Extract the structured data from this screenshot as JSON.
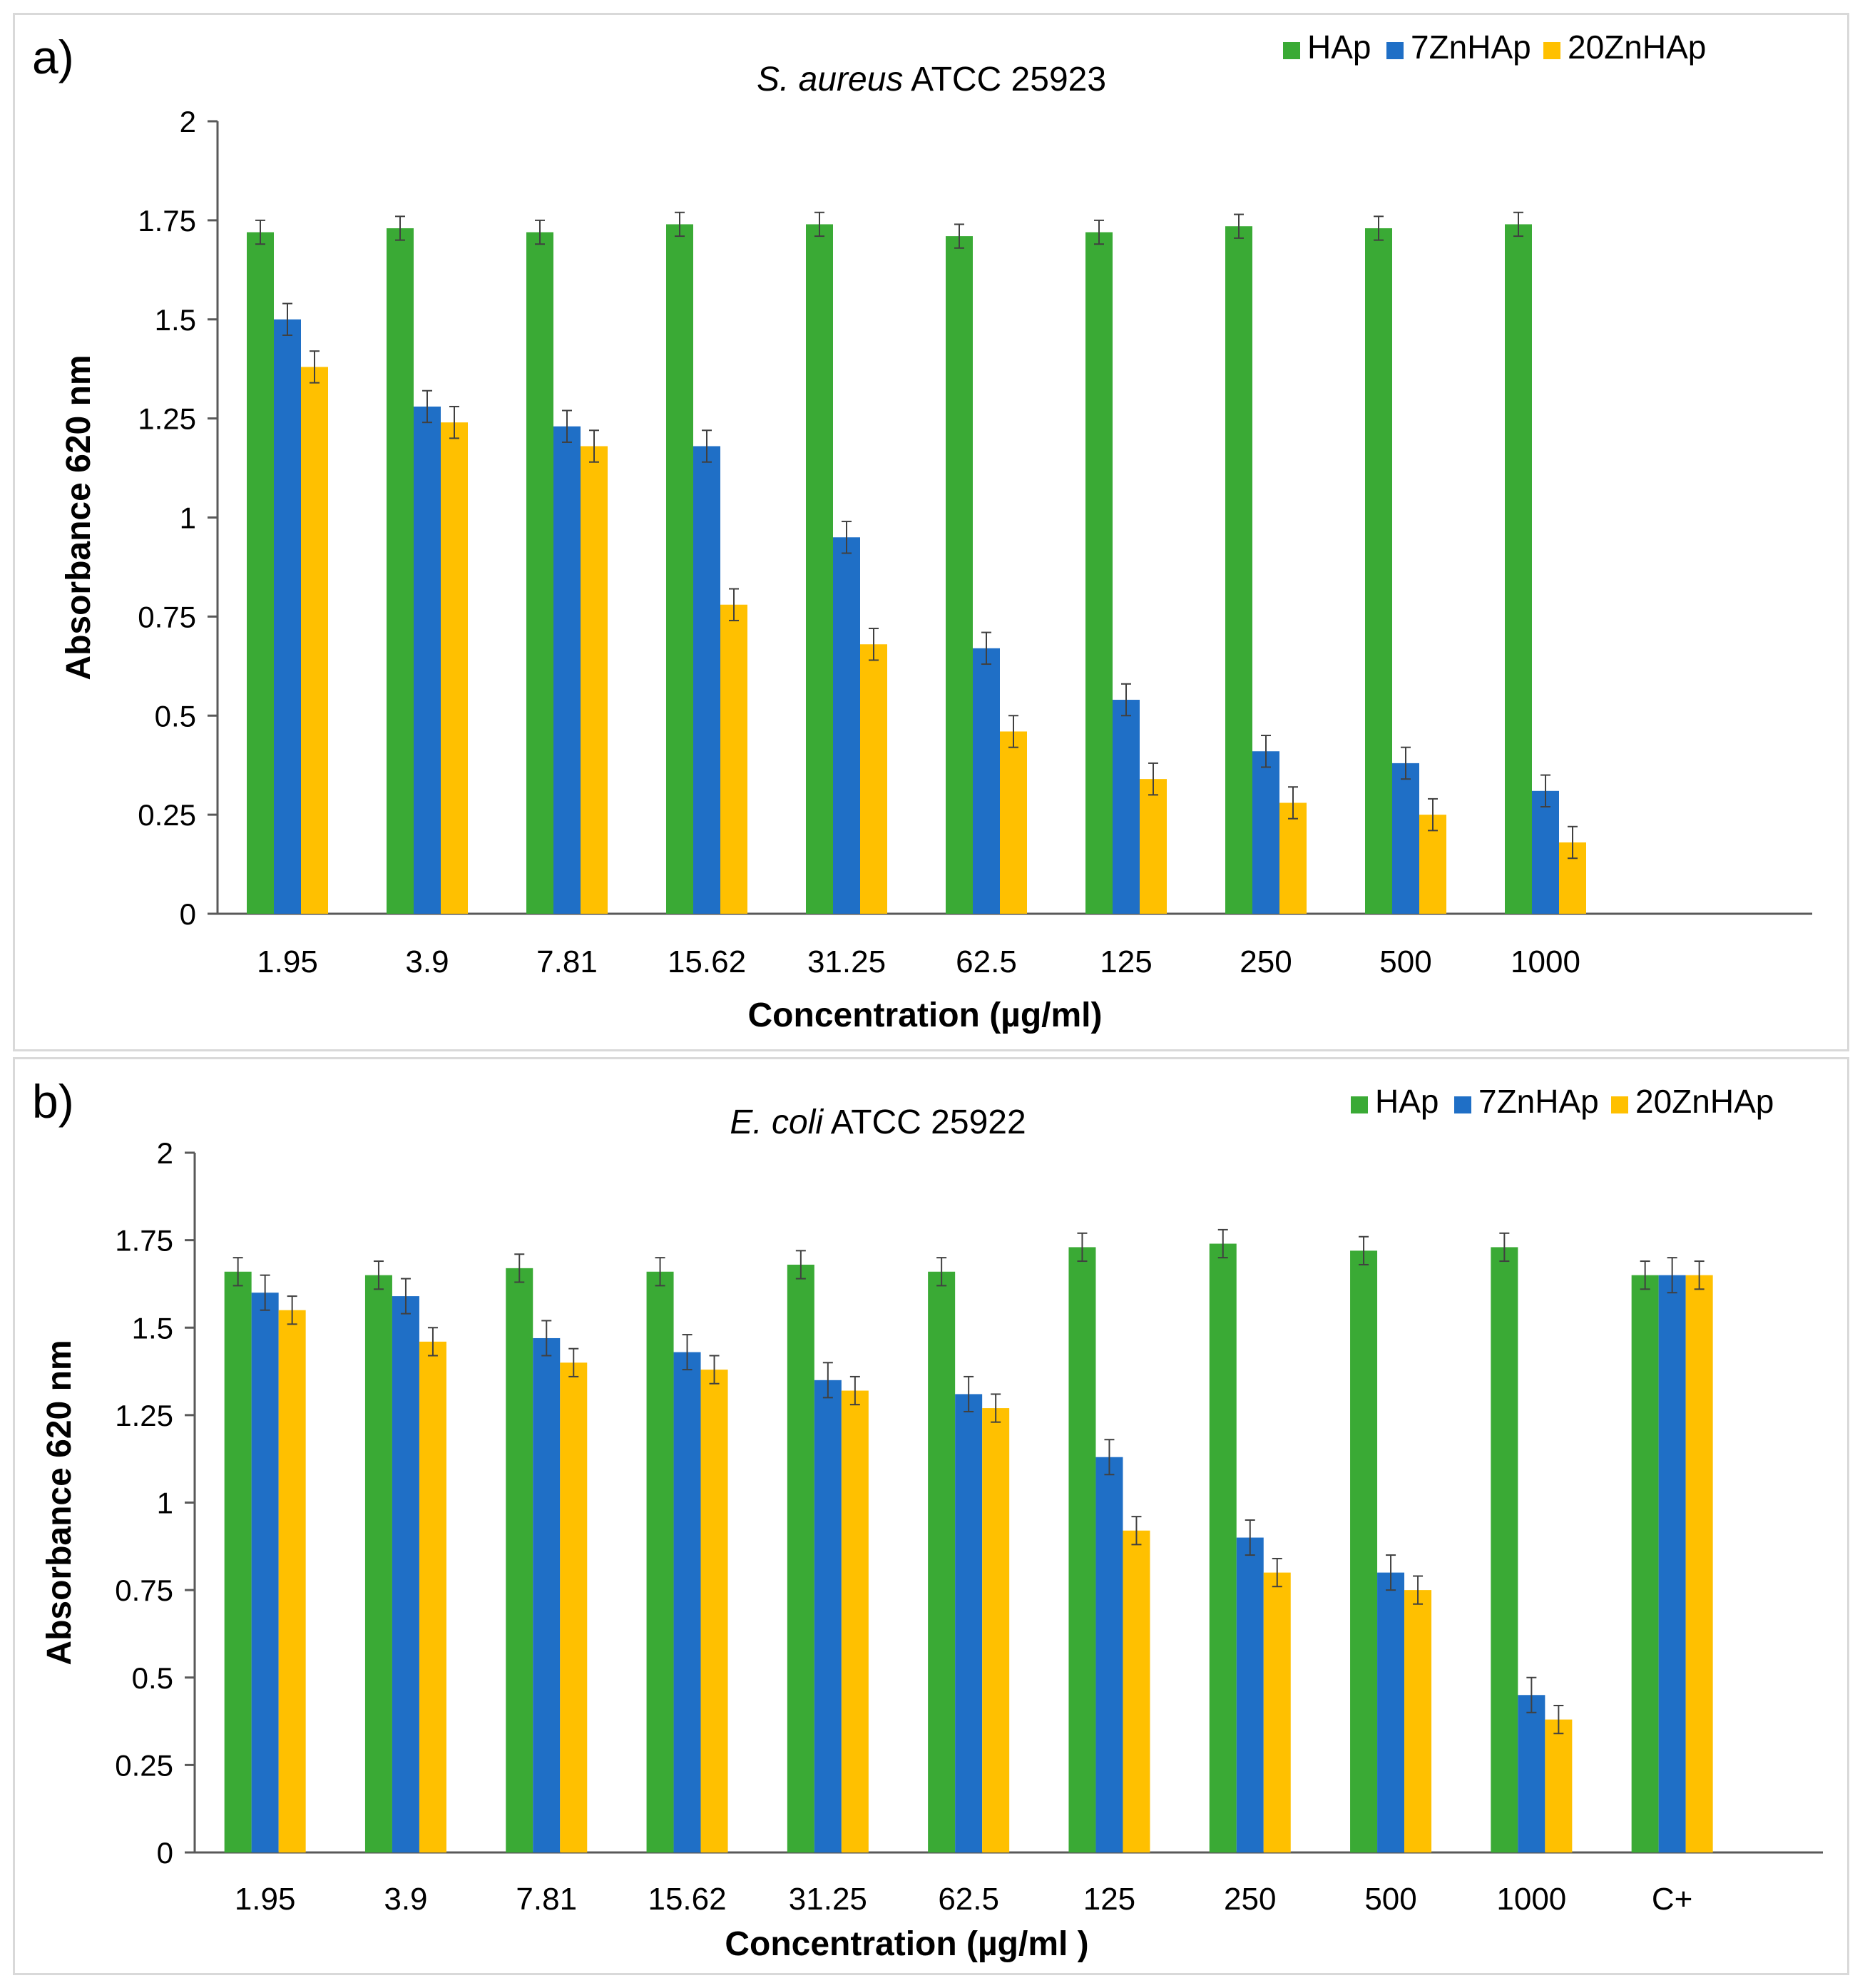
{
  "colors": {
    "HAp": "#3aaa35",
    "7ZnHAp": "#1f6fc6",
    "20ZnHAp": "#ffc000",
    "axis": "#595959",
    "error_bar": "#404040"
  },
  "chart_data": [
    {
      "type": "bar",
      "panel_label": "a)",
      "title_italic": "S. aureus",
      "title_rest": " ATCC 25923",
      "xlabel": "Concentration (µg/ml)",
      "ylabel": "Absorbance  620 nm",
      "ylim": [
        0,
        2
      ],
      "yticks": [
        "0",
        "0.25",
        "0.5",
        "0.75",
        "1",
        "1.25",
        "1.5",
        "1.75",
        "2"
      ],
      "legend_position": "top-right",
      "categories": [
        "1.95",
        "3.9",
        "7.81",
        "15.62",
        "31.25",
        "62.5",
        "125",
        "250",
        "500",
        "1000",
        ""
      ],
      "series": [
        {
          "name": "HAp",
          "color_key": "HAp",
          "values": [
            1.72,
            1.73,
            1.72,
            1.74,
            1.74,
            1.71,
            1.72,
            1.735,
            1.73,
            1.74,
            null
          ],
          "errors": [
            0.03,
            0.03,
            0.03,
            0.03,
            0.03,
            0.03,
            0.03,
            0.03,
            0.03,
            0.03,
            null
          ]
        },
        {
          "name": "7ZnHAp",
          "color_key": "7ZnHAp",
          "values": [
            1.5,
            1.28,
            1.23,
            1.18,
            0.95,
            0.67,
            0.54,
            0.41,
            0.38,
            0.31,
            null
          ],
          "errors": [
            0.04,
            0.04,
            0.04,
            0.04,
            0.04,
            0.04,
            0.04,
            0.04,
            0.04,
            0.04,
            null
          ]
        },
        {
          "name": "20ZnHAp",
          "color_key": "20ZnHAp",
          "values": [
            1.38,
            1.24,
            1.18,
            0.78,
            0.68,
            0.46,
            0.34,
            0.28,
            0.25,
            0.18,
            null
          ],
          "errors": [
            0.04,
            0.04,
            0.04,
            0.04,
            0.04,
            0.04,
            0.04,
            0.04,
            0.04,
            0.04,
            null
          ]
        }
      ]
    },
    {
      "type": "bar",
      "panel_label": "b)",
      "title_italic": "E. coli",
      "title_rest": " ATCC 25922",
      "xlabel": "Concentration (µg/ml )",
      "ylabel": "Absorbance  620 nm",
      "ylim": [
        0,
        2
      ],
      "yticks": [
        "0",
        "0.25",
        "0.5",
        "0.75",
        "1",
        "1.25",
        "1.5",
        "1.75",
        "2"
      ],
      "legend_position": "top-right",
      "categories": [
        "1.95",
        "3.9",
        "7.81",
        "15.62",
        "31.25",
        "62.5",
        "125",
        "250",
        "500",
        "1000",
        "C+"
      ],
      "series": [
        {
          "name": "HAp",
          "color_key": "HAp",
          "values": [
            1.66,
            1.65,
            1.67,
            1.66,
            1.68,
            1.66,
            1.73,
            1.74,
            1.72,
            1.73,
            1.65
          ],
          "errors": [
            0.04,
            0.04,
            0.04,
            0.04,
            0.04,
            0.04,
            0.04,
            0.04,
            0.04,
            0.04,
            0.04
          ]
        },
        {
          "name": "7ZnHAp",
          "color_key": "7ZnHAp",
          "values": [
            1.6,
            1.59,
            1.47,
            1.43,
            1.35,
            1.31,
            1.13,
            0.9,
            0.8,
            0.45,
            1.65
          ],
          "errors": [
            0.05,
            0.05,
            0.05,
            0.05,
            0.05,
            0.05,
            0.05,
            0.05,
            0.05,
            0.05,
            0.05
          ]
        },
        {
          "name": "20ZnHAp",
          "color_key": "20ZnHAp",
          "values": [
            1.55,
            1.46,
            1.4,
            1.38,
            1.32,
            1.27,
            0.92,
            0.8,
            0.75,
            0.38,
            1.65
          ],
          "errors": [
            0.04,
            0.04,
            0.04,
            0.04,
            0.04,
            0.04,
            0.04,
            0.04,
            0.04,
            0.04,
            0.04
          ]
        }
      ]
    }
  ]
}
